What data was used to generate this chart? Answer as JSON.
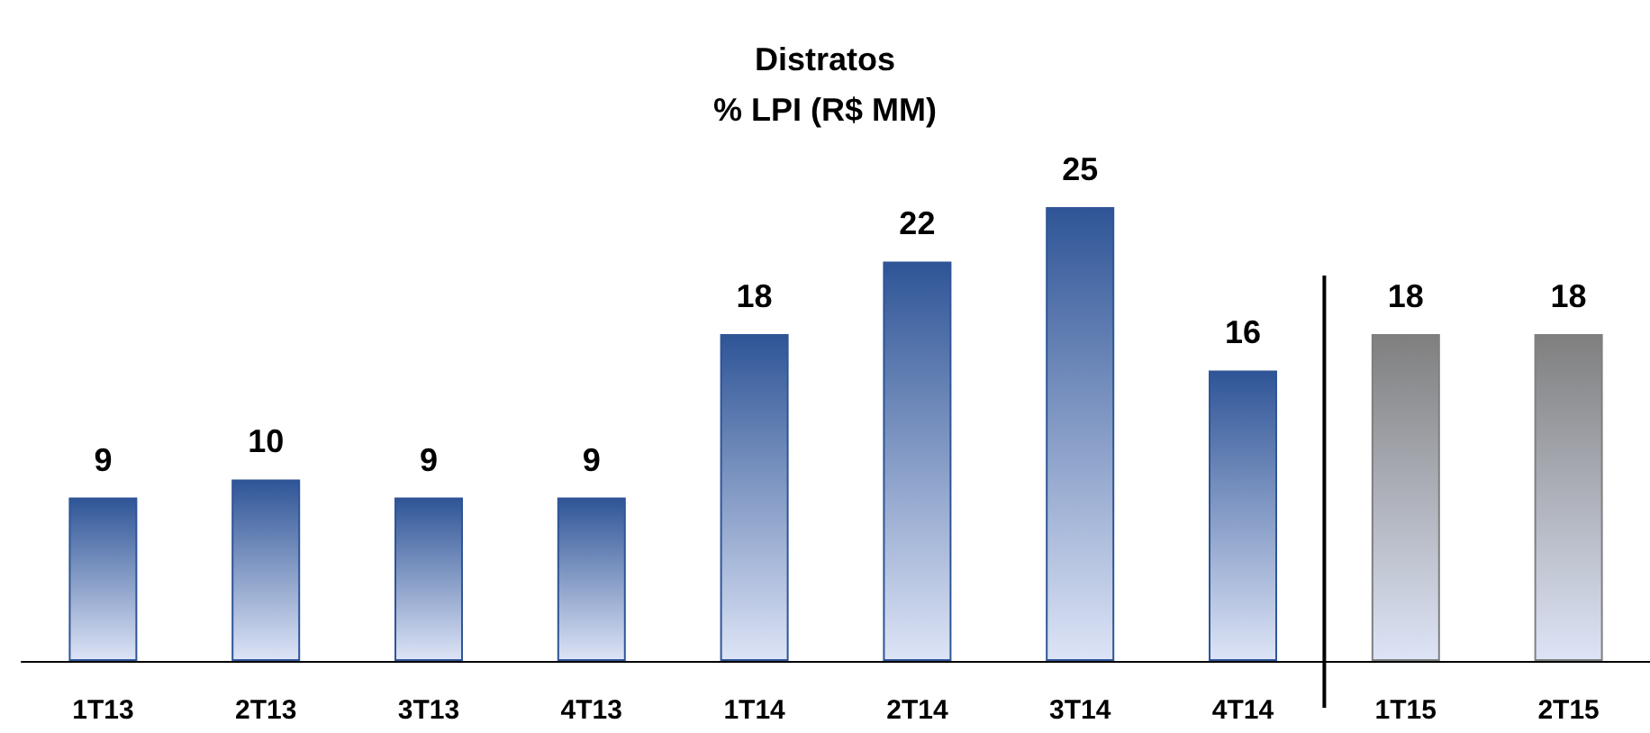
{
  "chart_data": {
    "type": "bar",
    "title": "Distratos\n% LPI (R$ MM)",
    "categories": [
      "1T13",
      "2T13",
      "3T13",
      "4T13",
      "1T14",
      "2T14",
      "3T14",
      "4T14",
      "1T15",
      "2T15"
    ],
    "values": [
      9,
      10,
      9,
      9,
      18,
      22,
      25,
      16,
      18,
      18
    ],
    "colors": [
      "#2f5597",
      "#2f5597",
      "#2f5597",
      "#2f5597",
      "#2f5597",
      "#2f5597",
      "#2f5597",
      "#2f5597",
      "#7f7f7f",
      "#7f7f7f"
    ],
    "data_labels": true,
    "grid": false
  }
}
